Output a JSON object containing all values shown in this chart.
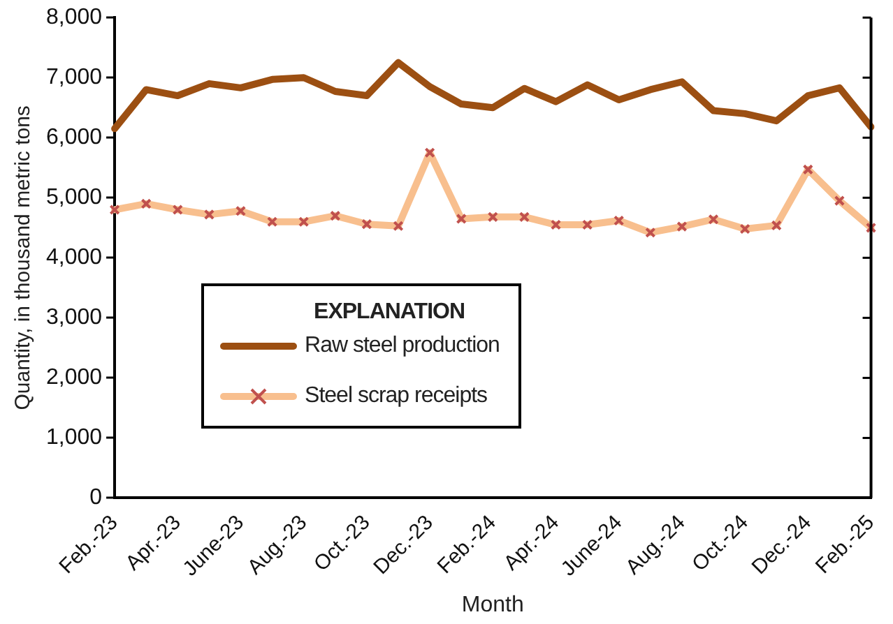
{
  "chart_data": {
    "type": "line",
    "xlabel": "Month",
    "ylabel": "Quantity, in thousand metric tons",
    "legend_title": "EXPLANATION",
    "legend": "bottom left",
    "grid": false,
    "categories": [
      "Feb.-23",
      null,
      "Apr.-23",
      null,
      "June-23",
      null,
      "Aug.-23",
      null,
      "Oct.-23",
      null,
      "Dec.-23",
      null,
      "Feb.-24",
      null,
      "Apr.-24",
      null,
      "June-24",
      null,
      "Aug.-24",
      null,
      "Oct.-24",
      null,
      "Dec.-24",
      null,
      "Feb.-25"
    ],
    "ylim": [
      0,
      8000
    ],
    "yticks": [
      0,
      {
        "value": 1000,
        "label": "1,000"
      },
      {
        "value": 2000,
        "label": "2,000"
      },
      {
        "value": 3000,
        "label": "3,000"
      },
      {
        "value": 4000,
        "label": "4,000"
      },
      {
        "value": 5000,
        "label": "5,000"
      },
      {
        "value": 6000,
        "label": "6,000"
      },
      {
        "value": 7000,
        "label": "7,000"
      },
      {
        "value": 8000,
        "label": "8,000"
      }
    ],
    "series": [
      {
        "name": "Raw steel production",
        "color": "#9c4f12",
        "marker": "none",
        "values": [
          6150,
          6800,
          6700,
          6900,
          6830,
          6970,
          7000,
          6770,
          6700,
          7250,
          6850,
          6560,
          6500,
          6820,
          6600,
          6880,
          6630,
          6800,
          6930,
          6450,
          6400,
          6280,
          6700,
          6830,
          6180
        ]
      },
      {
        "name": "Steel scrap receipts",
        "color": "#f8bf8e",
        "marker": "cross",
        "values": [
          4800,
          4900,
          4800,
          4720,
          4780,
          4600,
          4600,
          4700,
          4560,
          4530,
          5750,
          4650,
          4680,
          4680,
          4550,
          4550,
          4620,
          4420,
          4520,
          4640,
          4480,
          4540,
          5470,
          4950,
          4500
        ]
      }
    ]
  }
}
